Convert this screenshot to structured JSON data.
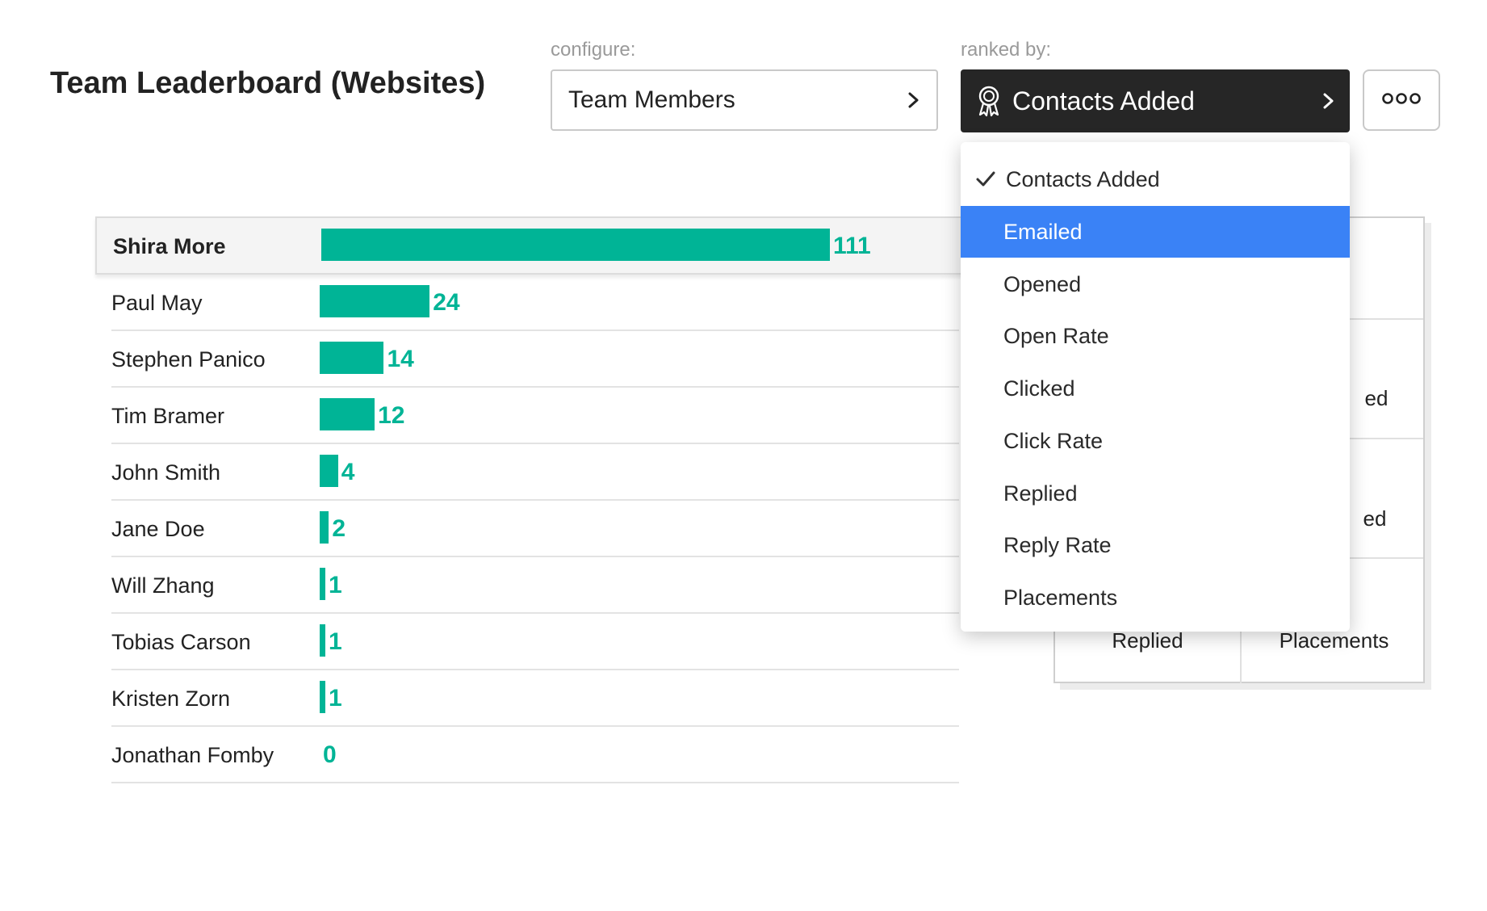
{
  "header": {
    "title": "Team Leaderboard (Websites)",
    "configure_label": "configure:",
    "configure_value": "Team Members",
    "ranked_label": "ranked by:",
    "ranked_value": "Contacts Added"
  },
  "colors": {
    "bar": "#00b496",
    "selected": "#3a82f6",
    "dark_button": "#262626"
  },
  "leaderboard": [
    {
      "name": "Shira More",
      "value": 111
    },
    {
      "name": "Paul May",
      "value": 24
    },
    {
      "name": "Stephen Panico",
      "value": 14
    },
    {
      "name": "Tim Bramer",
      "value": 12
    },
    {
      "name": "John Smith",
      "value": 4
    },
    {
      "name": "Jane Doe",
      "value": 2
    },
    {
      "name": "Will Zhang",
      "value": 1
    },
    {
      "name": "Tobias Carson",
      "value": 1
    },
    {
      "name": "Kristen Zorn",
      "value": 1
    },
    {
      "name": "Jonathan Fomby",
      "value": 0
    }
  ],
  "dropdown": {
    "items": [
      {
        "label": "Contacts Added",
        "checked": true
      },
      {
        "label": "Emailed",
        "highlighted": true
      },
      {
        "label": "Opened"
      },
      {
        "label": "Open Rate"
      },
      {
        "label": "Clicked"
      },
      {
        "label": "Click Rate"
      },
      {
        "label": "Replied"
      },
      {
        "label": "Reply Rate"
      },
      {
        "label": "Placements"
      }
    ]
  },
  "stats_card": {
    "partial_label_1": "ed",
    "partial_label_2": "ed",
    "replied_label": "Replied",
    "placements_label": "Placements"
  }
}
